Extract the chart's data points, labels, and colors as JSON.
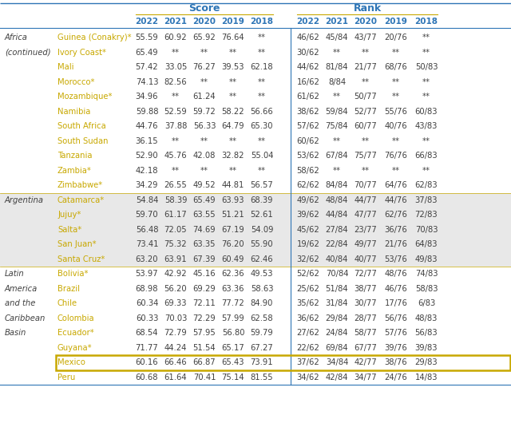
{
  "header_score": "Score",
  "header_rank": "Rank",
  "years": [
    "2022",
    "2021",
    "2020",
    "2019",
    "2018"
  ],
  "blue": "#2e75b6",
  "yellow": "#c8a800",
  "dark_text": "#404040",
  "gray_bg": "#e8e8e8",
  "mexico_box_color": "#c8a800",
  "rows": [
    {
      "region": "Africa\n(continued)",
      "country": "Guinea (Conakry)*",
      "scores": [
        "55.59",
        "60.92",
        "65.92",
        "76.64",
        "**"
      ],
      "ranks": [
        "46/62",
        "45/84",
        "43/77",
        "20/76",
        "**"
      ],
      "gray": false,
      "highlight": false
    },
    {
      "region": "",
      "country": "Ivory Coast*",
      "scores": [
        "65.49",
        "**",
        "**",
        "**",
        "**"
      ],
      "ranks": [
        "30/62",
        "**",
        "**",
        "**",
        "**"
      ],
      "gray": false,
      "highlight": false
    },
    {
      "region": "",
      "country": "Mali",
      "scores": [
        "57.42",
        "33.05",
        "76.27",
        "39.53",
        "62.18"
      ],
      "ranks": [
        "44/62",
        "81/84",
        "21/77",
        "68/76",
        "50/83"
      ],
      "gray": false,
      "highlight": false
    },
    {
      "region": "",
      "country": "Morocco*",
      "scores": [
        "74.13",
        "82.56",
        "**",
        "**",
        "**"
      ],
      "ranks": [
        "16/62",
        "8/84",
        "**",
        "**",
        "**"
      ],
      "gray": false,
      "highlight": false
    },
    {
      "region": "",
      "country": "Mozambique*",
      "scores": [
        "34.96",
        "**",
        "61.24",
        "**",
        "**"
      ],
      "ranks": [
        "61/62",
        "**",
        "50/77",
        "**",
        "**"
      ],
      "gray": false,
      "highlight": false
    },
    {
      "region": "",
      "country": "Namibia",
      "scores": [
        "59.88",
        "52.59",
        "59.72",
        "58.22",
        "56.66"
      ],
      "ranks": [
        "38/62",
        "59/84",
        "52/77",
        "55/76",
        "60/83"
      ],
      "gray": false,
      "highlight": false
    },
    {
      "region": "",
      "country": "South Africa",
      "scores": [
        "44.76",
        "37.88",
        "56.33",
        "64.79",
        "65.30"
      ],
      "ranks": [
        "57/62",
        "75/84",
        "60/77",
        "40/76",
        "43/83"
      ],
      "gray": false,
      "highlight": false
    },
    {
      "region": "",
      "country": "South Sudan",
      "scores": [
        "36.15",
        "**",
        "**",
        "**",
        "**"
      ],
      "ranks": [
        "60/62",
        "**",
        "**",
        "**",
        "**"
      ],
      "gray": false,
      "highlight": false
    },
    {
      "region": "",
      "country": "Tanzania",
      "scores": [
        "52.90",
        "45.76",
        "42.08",
        "32.82",
        "55.04"
      ],
      "ranks": [
        "53/62",
        "67/84",
        "75/77",
        "76/76",
        "66/83"
      ],
      "gray": false,
      "highlight": false
    },
    {
      "region": "",
      "country": "Zambia*",
      "scores": [
        "42.18",
        "**",
        "**",
        "**",
        "**"
      ],
      "ranks": [
        "58/62",
        "**",
        "**",
        "**",
        "**"
      ],
      "gray": false,
      "highlight": false
    },
    {
      "region": "",
      "country": "Zimbabwe*",
      "scores": [
        "34.29",
        "26.55",
        "49.52",
        "44.81",
        "56.57"
      ],
      "ranks": [
        "62/62",
        "84/84",
        "70/77",
        "64/76",
        "62/83"
      ],
      "gray": false,
      "highlight": false
    },
    {
      "region": "Argentina",
      "country": "Catamarca*",
      "scores": [
        "54.84",
        "58.39",
        "65.49",
        "63.93",
        "68.39"
      ],
      "ranks": [
        "49/62",
        "48/84",
        "44/77",
        "44/76",
        "37/83"
      ],
      "gray": true,
      "highlight": false
    },
    {
      "region": "",
      "country": "Jujuy*",
      "scores": [
        "59.70",
        "61.17",
        "63.55",
        "51.21",
        "52.61"
      ],
      "ranks": [
        "39/62",
        "44/84",
        "47/77",
        "62/76",
        "72/83"
      ],
      "gray": true,
      "highlight": false
    },
    {
      "region": "",
      "country": "Salta*",
      "scores": [
        "56.48",
        "72.05",
        "74.69",
        "67.19",
        "54.09"
      ],
      "ranks": [
        "45/62",
        "27/84",
        "23/77",
        "36/76",
        "70/83"
      ],
      "gray": true,
      "highlight": false
    },
    {
      "region": "",
      "country": "San Juan*",
      "scores": [
        "73.41",
        "75.32",
        "63.35",
        "76.20",
        "55.90"
      ],
      "ranks": [
        "19/62",
        "22/84",
        "49/77",
        "21/76",
        "64/83"
      ],
      "gray": true,
      "highlight": false
    },
    {
      "region": "",
      "country": "Santa Cruz*",
      "scores": [
        "63.20",
        "63.91",
        "67.39",
        "60.49",
        "62.46"
      ],
      "ranks": [
        "32/62",
        "40/84",
        "40/77",
        "53/76",
        "49/83"
      ],
      "gray": true,
      "highlight": false
    },
    {
      "region": "Latin\nAmerica\nand the\nCaribbean\nBasin",
      "country": "Bolivia*",
      "scores": [
        "53.97",
        "42.92",
        "45.16",
        "62.36",
        "49.53"
      ],
      "ranks": [
        "52/62",
        "70/84",
        "72/77",
        "48/76",
        "74/83"
      ],
      "gray": false,
      "highlight": false
    },
    {
      "region": "",
      "country": "Brazil",
      "scores": [
        "68.98",
        "56.20",
        "69.29",
        "63.36",
        "58.63"
      ],
      "ranks": [
        "25/62",
        "51/84",
        "38/77",
        "46/76",
        "58/83"
      ],
      "gray": false,
      "highlight": false
    },
    {
      "region": "",
      "country": "Chile",
      "scores": [
        "60.34",
        "69.33",
        "72.11",
        "77.72",
        "84.90"
      ],
      "ranks": [
        "35/62",
        "31/84",
        "30/77",
        "17/76",
        "6/83"
      ],
      "gray": false,
      "highlight": false
    },
    {
      "region": "",
      "country": "Colombia",
      "scores": [
        "60.33",
        "70.03",
        "72.29",
        "57.99",
        "62.58"
      ],
      "ranks": [
        "36/62",
        "29/84",
        "28/77",
        "56/76",
        "48/83"
      ],
      "gray": false,
      "highlight": false
    },
    {
      "region": "",
      "country": "Ecuador*",
      "scores": [
        "68.54",
        "72.79",
        "57.95",
        "56.80",
        "59.79"
      ],
      "ranks": [
        "27/62",
        "24/84",
        "58/77",
        "57/76",
        "56/83"
      ],
      "gray": false,
      "highlight": false
    },
    {
      "region": "",
      "country": "Guyana*",
      "scores": [
        "71.77",
        "44.24",
        "51.54",
        "65.17",
        "67.27"
      ],
      "ranks": [
        "22/62",
        "69/84",
        "67/77",
        "39/76",
        "39/83"
      ],
      "gray": false,
      "highlight": false
    },
    {
      "region": "",
      "country": "Mexico",
      "scores": [
        "60.16",
        "66.46",
        "66.87",
        "65.43",
        "73.91"
      ],
      "ranks": [
        "37/62",
        "34/84",
        "42/77",
        "38/76",
        "29/83"
      ],
      "gray": false,
      "highlight": true
    },
    {
      "region": "",
      "country": "Peru",
      "scores": [
        "60.68",
        "61.64",
        "70.41",
        "75.14",
        "81.55"
      ],
      "ranks": [
        "34/62",
        "42/84",
        "34/77",
        "24/76",
        "14/83"
      ],
      "gray": false,
      "highlight": false
    }
  ]
}
